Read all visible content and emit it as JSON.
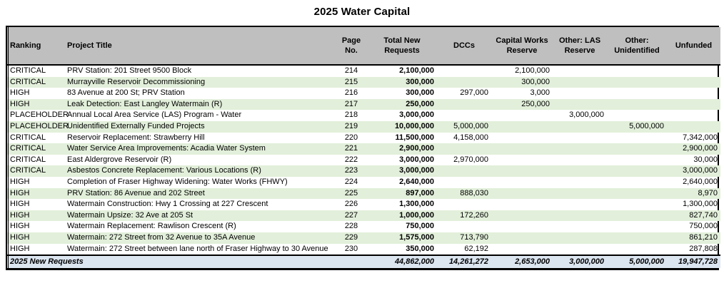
{
  "page": {
    "title": "2025 Water Capital"
  },
  "table": {
    "colors": {
      "header_bg": "#bfbfbf",
      "alt_row_bg": "#e2efda",
      "total_row_bg": "#dce6f1"
    },
    "headers": {
      "ranking": "Ranking",
      "project_title": "Project Title",
      "page_no": "Page No.",
      "total_new_requests": "Total New Requests",
      "dccs": "DCCs",
      "capital_works_reserve": "Capital Works Reserve",
      "other_las_reserve": "Other: LAS Reserve",
      "other_unidentified": "Other: Unidentified",
      "unfunded": "Unfunded"
    },
    "rows": [
      {
        "ranking": "CRITICAL",
        "project_title": "PRV Station: 201 Street 9500 Block",
        "page_no": "214",
        "total_new_requests": "2,100,000",
        "dccs": "",
        "capital_works_reserve": "2,100,000",
        "other_las_reserve": "",
        "other_unidentified": "",
        "unfunded": ""
      },
      {
        "ranking": "CRITICAL",
        "project_title": "Murrayville Reservoir Decommissioning",
        "page_no": "215",
        "total_new_requests": "300,000",
        "dccs": "",
        "capital_works_reserve": "300,000",
        "other_las_reserve": "",
        "other_unidentified": "",
        "unfunded": ""
      },
      {
        "ranking": "HIGH",
        "project_title": "83 Avenue at 200 St; PRV Station",
        "page_no": "216",
        "total_new_requests": "300,000",
        "dccs": "297,000",
        "capital_works_reserve": "3,000",
        "other_las_reserve": "",
        "other_unidentified": "",
        "unfunded": ""
      },
      {
        "ranking": "HIGH",
        "project_title": "Leak Detection: East Langley Watermain (R)",
        "page_no": "217",
        "total_new_requests": "250,000",
        "dccs": "",
        "capital_works_reserve": "250,000",
        "other_las_reserve": "",
        "other_unidentified": "",
        "unfunded": ""
      },
      {
        "ranking": "PLACEHOLDER",
        "project_title": "Annual Local Area Service (LAS) Program - Water",
        "page_no": "218",
        "total_new_requests": "3,000,000",
        "dccs": "",
        "capital_works_reserve": "",
        "other_las_reserve": "3,000,000",
        "other_unidentified": "",
        "unfunded": ""
      },
      {
        "ranking": "PLACEHOLDER",
        "project_title": "Unidentified Externally Funded Projects",
        "page_no": "219",
        "total_new_requests": "10,000,000",
        "dccs": "5,000,000",
        "capital_works_reserve": "",
        "other_las_reserve": "",
        "other_unidentified": "5,000,000",
        "unfunded": ""
      },
      {
        "ranking": "CRITICAL",
        "project_title": "Reservoir Replacement: Strawberry Hill",
        "page_no": "220",
        "total_new_requests": "11,500,000",
        "dccs": "4,158,000",
        "capital_works_reserve": "",
        "other_las_reserve": "",
        "other_unidentified": "",
        "unfunded": "7,342,000"
      },
      {
        "ranking": "CRITICAL",
        "project_title": "Water Service Area Improvements: Acadia Water System",
        "page_no": "221",
        "total_new_requests": "2,900,000",
        "dccs": "",
        "capital_works_reserve": "",
        "other_las_reserve": "",
        "other_unidentified": "",
        "unfunded": "2,900,000"
      },
      {
        "ranking": "CRITICAL",
        "project_title": "East Aldergrove Reservoir (R)",
        "page_no": "222",
        "total_new_requests": "3,000,000",
        "dccs": "2,970,000",
        "capital_works_reserve": "",
        "other_las_reserve": "",
        "other_unidentified": "",
        "unfunded": "30,000"
      },
      {
        "ranking": "CRITICAL",
        "project_title": "Asbestos Concrete Replacement: Various Locations (R)",
        "page_no": "223",
        "total_new_requests": "3,000,000",
        "dccs": "",
        "capital_works_reserve": "",
        "other_las_reserve": "",
        "other_unidentified": "",
        "unfunded": "3,000,000"
      },
      {
        "ranking": "HIGH",
        "project_title": "Completion of Fraser Highway Widening: Water Works (FHWY)",
        "page_no": "224",
        "total_new_requests": "2,640,000",
        "dccs": "",
        "capital_works_reserve": "",
        "other_las_reserve": "",
        "other_unidentified": "",
        "unfunded": "2,640,000"
      },
      {
        "ranking": "HIGH",
        "project_title": "PRV Station: 86 Avenue and 202 Street",
        "page_no": "225",
        "total_new_requests": "897,000",
        "dccs": "888,030",
        "capital_works_reserve": "",
        "other_las_reserve": "",
        "other_unidentified": "",
        "unfunded": "8,970"
      },
      {
        "ranking": "HIGH",
        "project_title": "Watermain Construction: Hwy 1 Crossing at 227 Crescent",
        "page_no": "226",
        "total_new_requests": "1,300,000",
        "dccs": "",
        "capital_works_reserve": "",
        "other_las_reserve": "",
        "other_unidentified": "",
        "unfunded": "1,300,000"
      },
      {
        "ranking": "HIGH",
        "project_title": "Watermain Upsize: 32 Ave at 205 St",
        "page_no": "227",
        "total_new_requests": "1,000,000",
        "dccs": "172,260",
        "capital_works_reserve": "",
        "other_las_reserve": "",
        "other_unidentified": "",
        "unfunded": "827,740"
      },
      {
        "ranking": "HIGH",
        "project_title": "Watermain Replacement: Rawlison Crescent (R)",
        "page_no": "228",
        "total_new_requests": "750,000",
        "dccs": "",
        "capital_works_reserve": "",
        "other_las_reserve": "",
        "other_unidentified": "",
        "unfunded": "750,000"
      },
      {
        "ranking": "HIGH",
        "project_title": "Watermain: 272 Street from 32 Avenue to 35A Avenue",
        "page_no": "229",
        "total_new_requests": "1,575,000",
        "dccs": "713,790",
        "capital_works_reserve": "",
        "other_las_reserve": "",
        "other_unidentified": "",
        "unfunded": "861,210"
      },
      {
        "ranking": "HIGH",
        "project_title": "Watermain: 272 Street between lane north of Fraser Highway to 30 Avenue",
        "page_no": "230",
        "total_new_requests": "350,000",
        "dccs": "62,192",
        "capital_works_reserve": "",
        "other_las_reserve": "",
        "other_unidentified": "",
        "unfunded": "287,808"
      }
    ],
    "total_row": {
      "label": "2025 New Requests",
      "total_new_requests": "44,862,000",
      "dccs": "14,261,272",
      "capital_works_reserve": "2,653,000",
      "other_las_reserve": "3,000,000",
      "other_unidentified": "5,000,000",
      "unfunded": "19,947,728"
    }
  }
}
